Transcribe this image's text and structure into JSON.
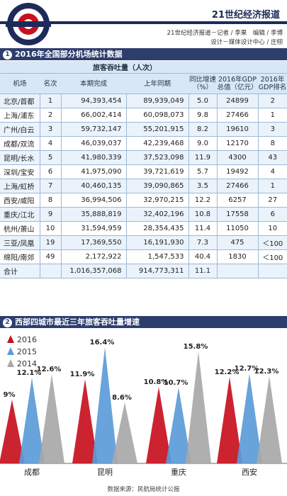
{
  "header": {
    "brand": "21世纪经济报道",
    "credit_line1": "21世纪经济报道－记者 / 李果　编辑 / 李博",
    "credit_line2": "设计－媒体设计中心 / 庄栩"
  },
  "section1": {
    "number": "1",
    "title": "2016年全国部分机场统计数据",
    "group_header": "旅客吞吐量（人次）",
    "columns": [
      "机场",
      "名次",
      "本期完成",
      "上年同期",
      "同比增速（%）",
      "2016年GDP总值（亿元）",
      "2016年GDP排名"
    ],
    "rows": [
      [
        "北京/首都",
        "1",
        "94,393,454",
        "89,939,049",
        "5.0",
        "24899",
        "2"
      ],
      [
        "上海/浦东",
        "2",
        "66,002,414",
        "60,098,073",
        "9.8",
        "27466",
        "1"
      ],
      [
        "广州/白云",
        "3",
        "59,732,147",
        "55,201,915",
        "8.2",
        "19610",
        "3"
      ],
      [
        "成都/双流",
        "4",
        "46,039,037",
        "42,239,468",
        "9.0",
        "12170",
        "8"
      ],
      [
        "昆明/长水",
        "5",
        "41,980,339",
        "37,523,098",
        "11.9",
        "4300",
        "43"
      ],
      [
        "深圳/宝安",
        "6",
        "41,975,090",
        "39,721,619",
        "5.7",
        "19492",
        "4"
      ],
      [
        "上海/虹桥",
        "7",
        "40,460,135",
        "39,090,865",
        "3.5",
        "27466",
        "1"
      ],
      [
        "西安/咸阳",
        "8",
        "36,994,506",
        "32,970,215",
        "12.2",
        "6257",
        "27"
      ],
      [
        "重庆/江北",
        "9",
        "35,888,819",
        "32,402,196",
        "10.8",
        "17558",
        "6"
      ],
      [
        "杭州/萧山",
        "10",
        "31,594,959",
        "28,354,435",
        "11.4",
        "11050",
        "10"
      ],
      [
        "三亚/凤凰",
        "19",
        "17,369,550",
        "16,191,930",
        "7.3",
        "475",
        "＜100"
      ],
      [
        "绵阳/南郊",
        "49",
        "2,172,922",
        "1,547,533",
        "40.4",
        "1830",
        "＜100"
      ]
    ],
    "total": [
      "合计",
      "",
      "1,016,357,068",
      "914,773,311",
      "11.1",
      "",
      ""
    ]
  },
  "section2": {
    "number": "2",
    "title": "西部四城市最近三年旅客吞吐量增速"
  },
  "chart_data": {
    "type": "bar",
    "categories": [
      "成都",
      "昆明",
      "重庆",
      "西安"
    ],
    "series": [
      {
        "name": "2016",
        "color": "#c8101e",
        "values": [
          9,
          11.9,
          10.8,
          12.2
        ]
      },
      {
        "name": "2015",
        "color": "#5b9bd8",
        "values": [
          12.1,
          16.4,
          10.7,
          12.7
        ]
      },
      {
        "name": "2014",
        "color": "#a8a8a8",
        "values": [
          12.6,
          8.6,
          15.8,
          12.3
        ]
      }
    ],
    "data_labels": [
      [
        "9%",
        "12.1%",
        "12.6%"
      ],
      [
        "11.9%",
        "16.4%",
        "8.6%"
      ],
      [
        "10.8%",
        "10.7%",
        "15.8%"
      ],
      [
        "12.2%",
        "12.7%",
        "12.3%"
      ]
    ],
    "ylim": [
      0,
      18
    ],
    "legend": "top-left",
    "grid": false
  },
  "footer": {
    "source": "数据来源：民航局统计公报"
  }
}
